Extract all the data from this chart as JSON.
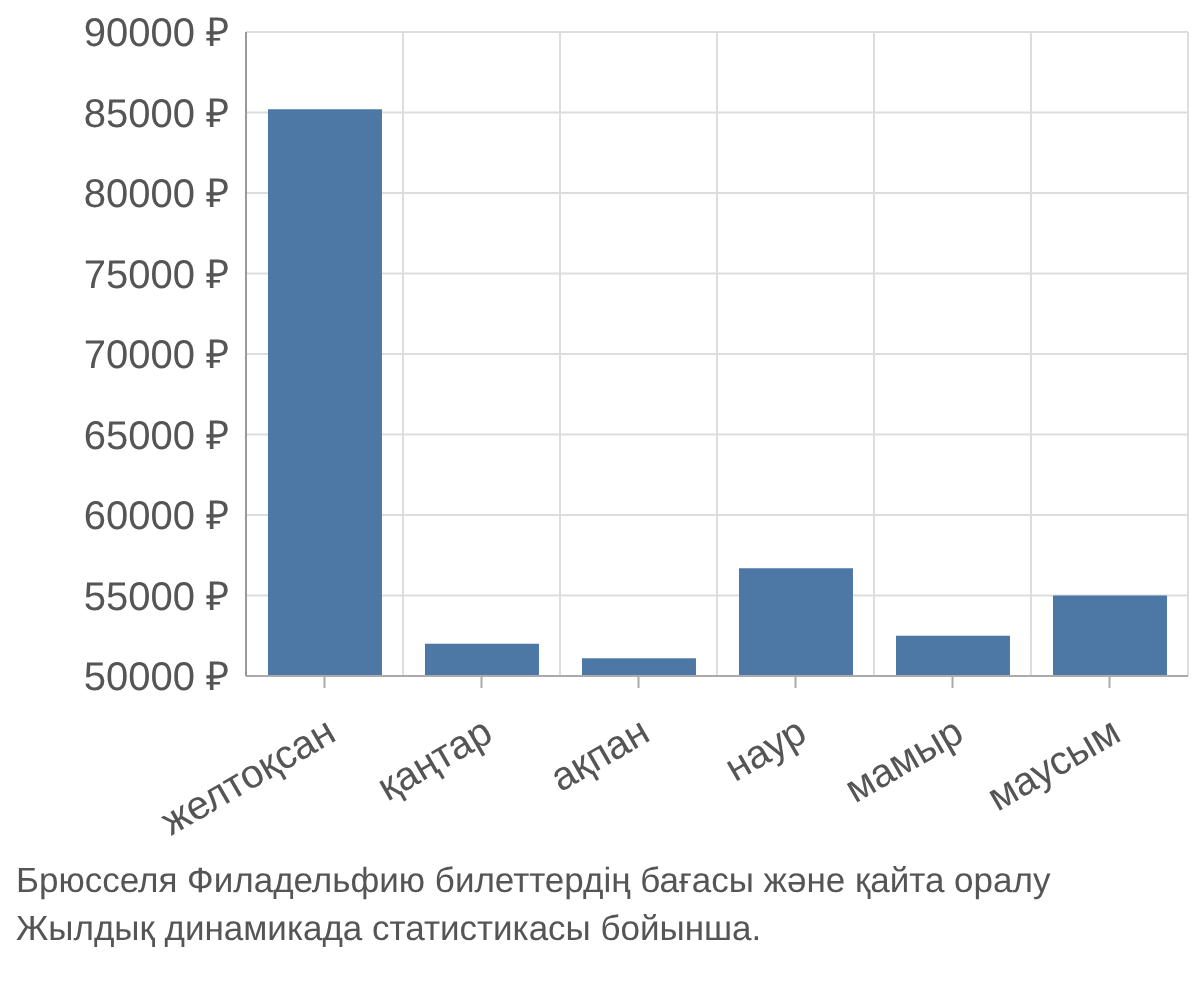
{
  "chart_data": {
    "type": "bar",
    "categories": [
      "желтоқсан",
      "қаңтар",
      "ақпан",
      "наур",
      "мамыр",
      "маусым"
    ],
    "values": [
      85200,
      52000,
      51100,
      56700,
      52500,
      55000
    ],
    "color": "#4d78a6",
    "ylim": [
      50000,
      90000
    ],
    "yticks": [
      {
        "value": 50000,
        "label": "50000 ₽"
      },
      {
        "value": 55000,
        "label": "55000 ₽"
      },
      {
        "value": 60000,
        "label": "60000 ₽"
      },
      {
        "value": 65000,
        "label": "65000 ₽"
      },
      {
        "value": 70000,
        "label": "70000 ₽"
      },
      {
        "value": 75000,
        "label": "75000 ₽"
      },
      {
        "value": 80000,
        "label": "80000 ₽"
      },
      {
        "value": 85000,
        "label": "85000 ₽"
      },
      {
        "value": 90000,
        "label": "90000 ₽"
      }
    ],
    "grid": true,
    "annotations": [
      "Брюсселя Филадельфию билеттердің бағасы және қайта оралу",
      "Жылдық динамикада статистикасы бойынша."
    ]
  }
}
